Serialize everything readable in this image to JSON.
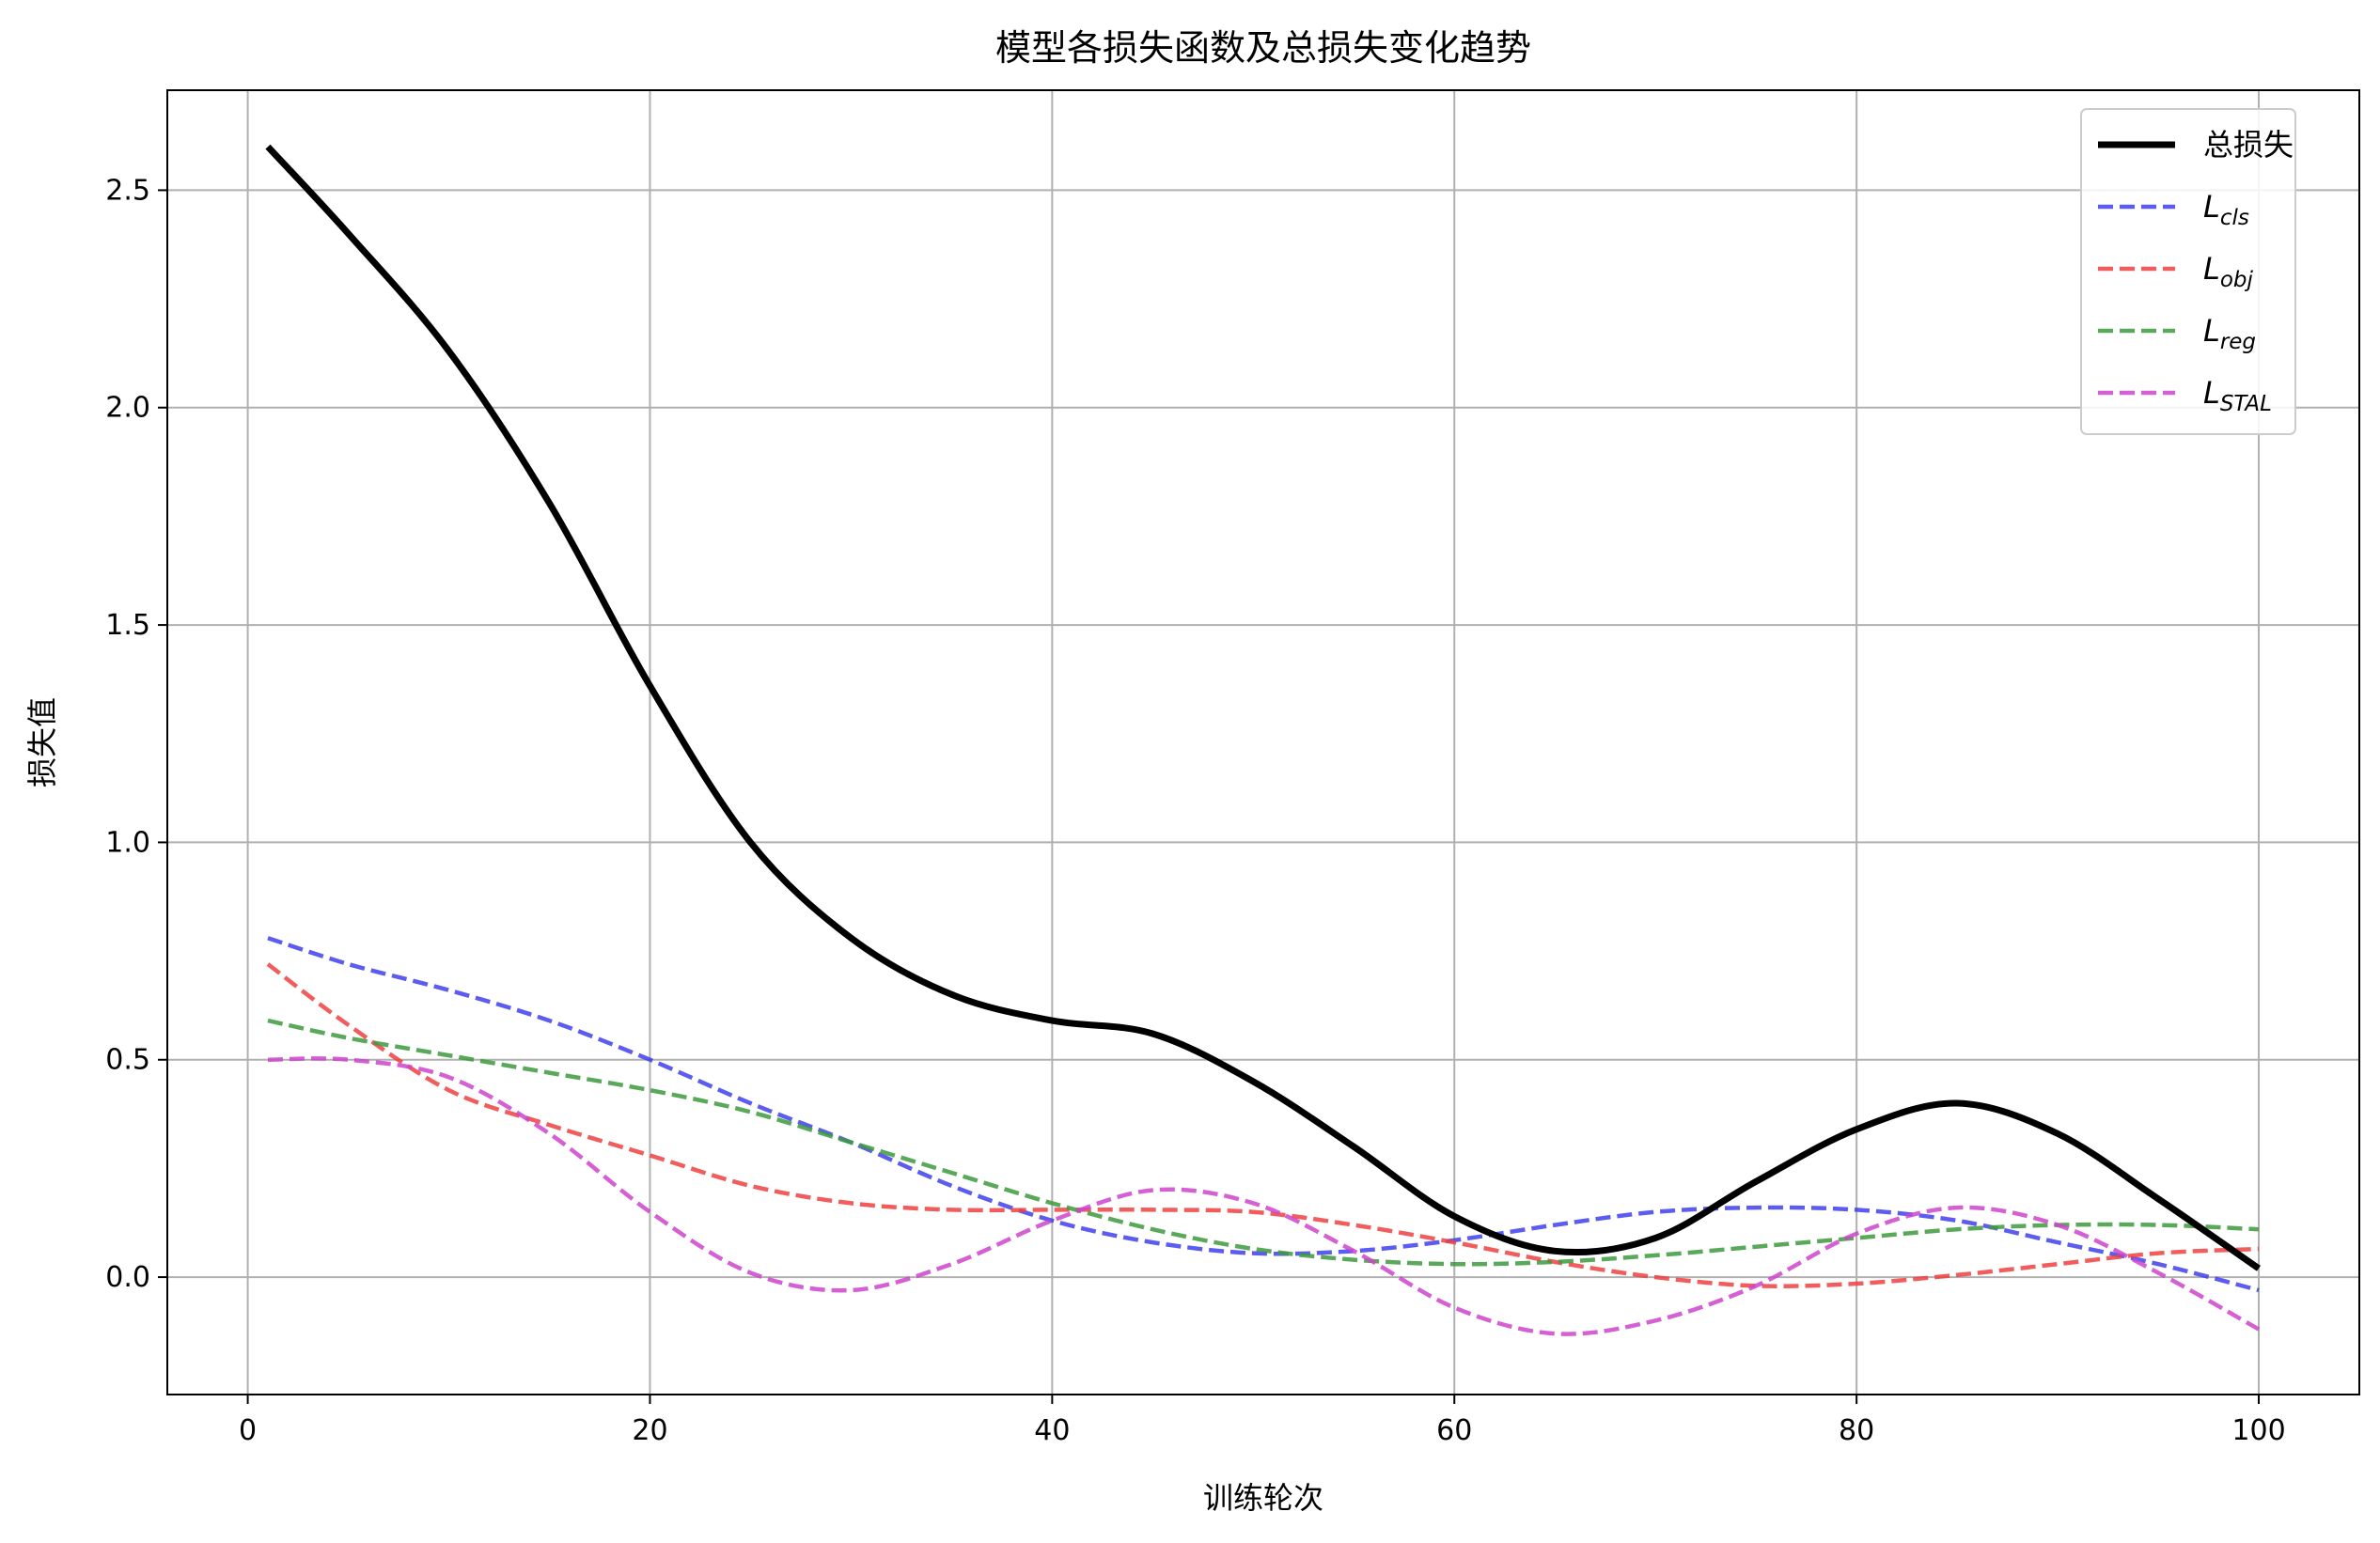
{
  "chart_data": {
    "type": "line",
    "title": "模型各损失函数及总损失变化趋势",
    "xlabel": "训练轮次",
    "ylabel": "损失值",
    "xlim": [
      -4,
      105
    ],
    "ylim": [
      -0.27,
      2.73
    ],
    "xticks": [
      0,
      20,
      40,
      60,
      80,
      100
    ],
    "yticks": [
      0.0,
      0.5,
      1.0,
      1.5,
      2.0,
      2.5
    ],
    "xtick_labels": [
      "0",
      "20",
      "40",
      "60",
      "80",
      "100"
    ],
    "ytick_labels": [
      "0.0",
      "0.5",
      "1.0",
      "1.5",
      "2.0",
      "2.5"
    ],
    "grid": true,
    "legend_position": "top-right",
    "x": [
      1,
      5,
      10,
      15,
      20,
      25,
      30,
      35,
      40,
      45,
      50,
      55,
      60,
      65,
      70,
      75,
      80,
      85,
      90,
      95,
      100
    ],
    "series": [
      {
        "name": "总损失",
        "name_main": "总损失",
        "name_sub": "",
        "color": "#000000",
        "dash": "solid",
        "values": [
          2.6,
          2.4,
          2.13,
          1.78,
          1.36,
          1.0,
          0.78,
          0.65,
          0.59,
          0.56,
          0.45,
          0.3,
          0.14,
          0.06,
          0.09,
          0.22,
          0.34,
          0.4,
          0.33,
          0.18,
          0.02
        ]
      },
      {
        "name": "Lcls",
        "name_main": "L",
        "name_sub": "cls",
        "color": "#4040ee",
        "dash": "dashed",
        "values": [
          0.78,
          0.72,
          0.66,
          0.59,
          0.5,
          0.4,
          0.31,
          0.21,
          0.13,
          0.08,
          0.055,
          0.06,
          0.085,
          0.12,
          0.15,
          0.16,
          0.155,
          0.13,
          0.08,
          0.03,
          -0.03
        ]
      },
      {
        "name": "Lobj",
        "name_main": "L",
        "name_sub": "obj",
        "color": "#ee4040",
        "dash": "dashed",
        "values": [
          0.72,
          0.58,
          0.43,
          0.35,
          0.28,
          0.21,
          0.17,
          0.155,
          0.155,
          0.155,
          0.15,
          0.12,
          0.08,
          0.035,
          0.0,
          -0.02,
          -0.015,
          0.005,
          0.03,
          0.055,
          0.065
        ]
      },
      {
        "name": "Lreg",
        "name_main": "L",
        "name_sub": "reg",
        "color": "#3d9a3d",
        "dash": "dashed",
        "values": [
          0.59,
          0.55,
          0.51,
          0.47,
          0.43,
          0.38,
          0.31,
          0.24,
          0.17,
          0.11,
          0.065,
          0.04,
          0.03,
          0.035,
          0.05,
          0.07,
          0.09,
          0.11,
          0.12,
          0.12,
          0.11
        ]
      },
      {
        "name": "LSTAL",
        "name_main": "L",
        "name_sub": "STAL",
        "color": "#cc44cc",
        "dash": "dashed",
        "values": [
          0.5,
          0.5,
          0.46,
          0.33,
          0.15,
          0.01,
          -0.03,
          0.03,
          0.13,
          0.2,
          0.17,
          0.06,
          -0.07,
          -0.13,
          -0.1,
          -0.02,
          0.1,
          0.16,
          0.12,
          0.01,
          -0.12
        ]
      }
    ]
  }
}
